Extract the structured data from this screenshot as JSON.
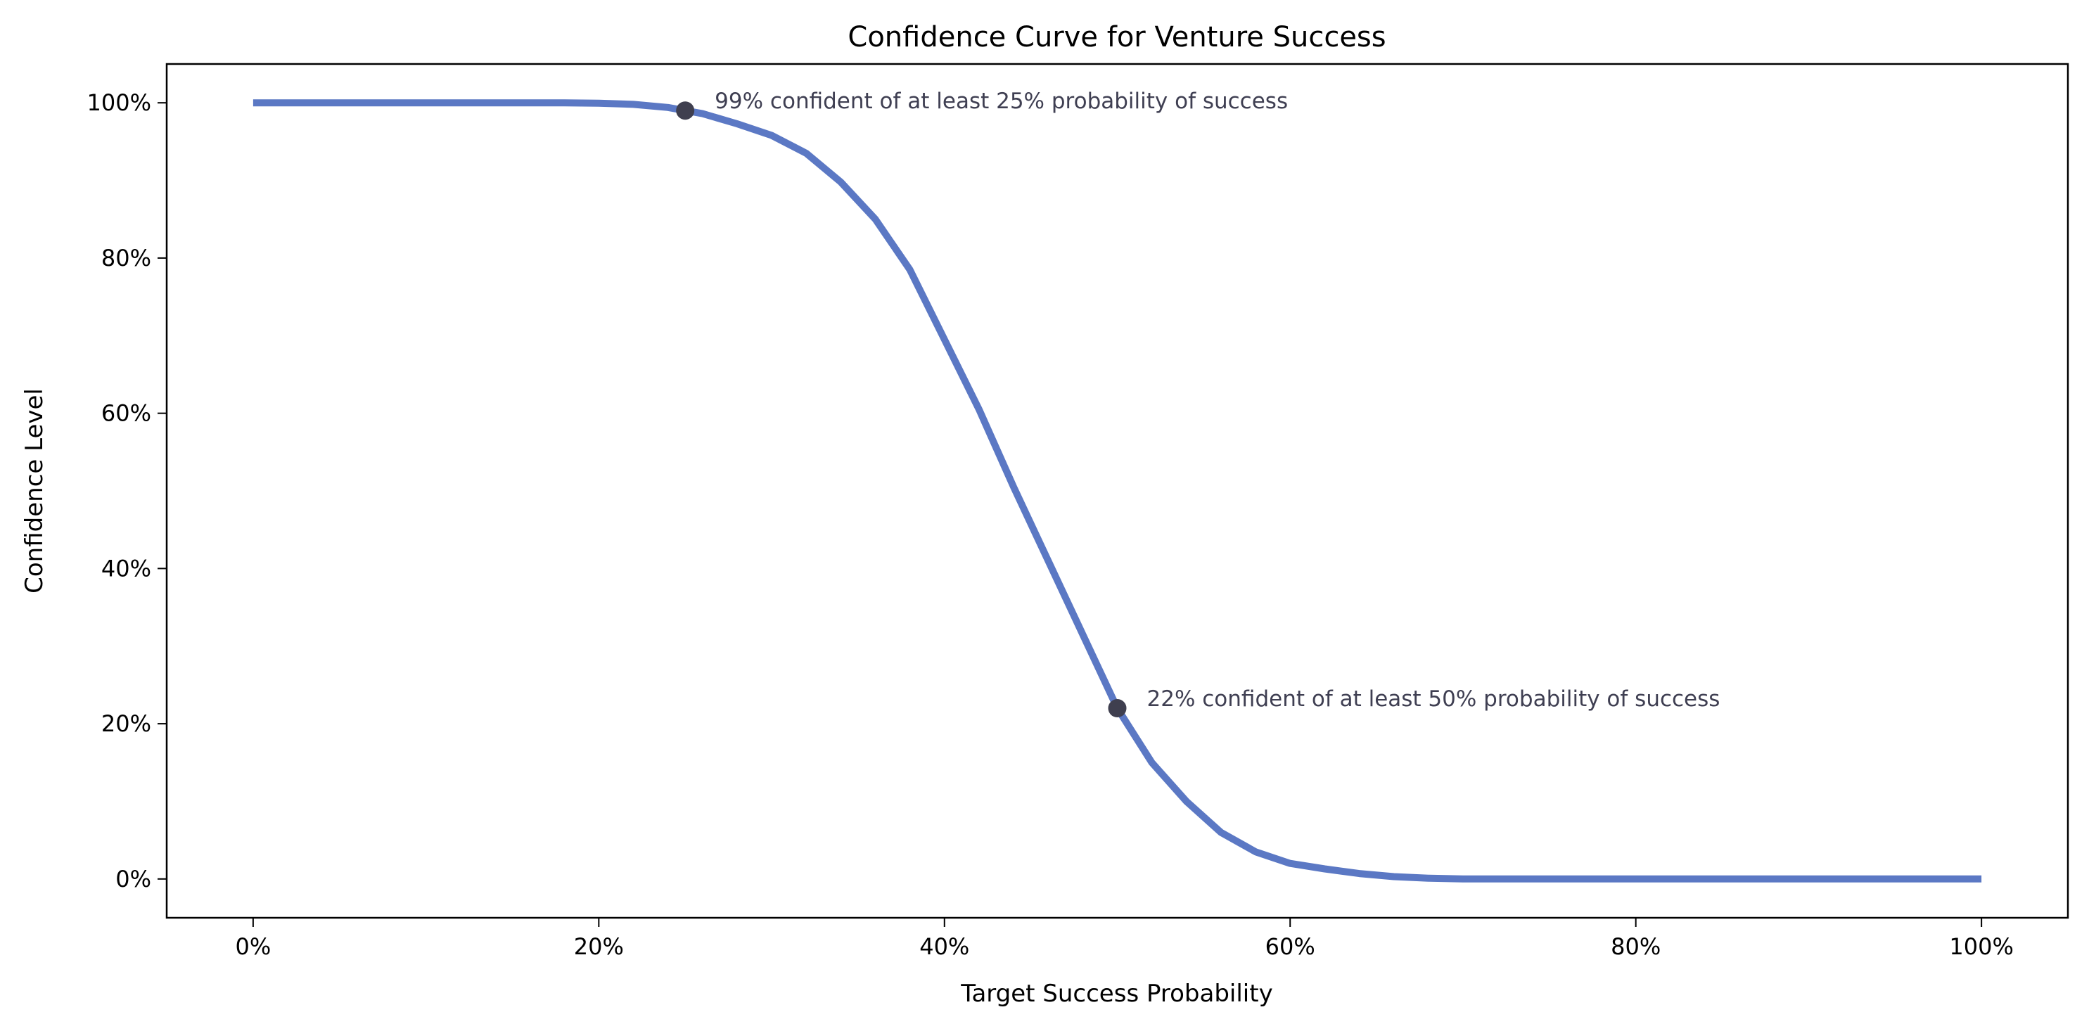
{
  "chart_data": {
    "type": "line",
    "title": "Confidence Curve for Venture Success",
    "xlabel": "Target Success Probability",
    "ylabel": "Confidence Level",
    "xlim": [
      -5,
      105
    ],
    "ylim": [
      -5,
      105
    ],
    "x_ticks": [
      0,
      20,
      40,
      60,
      80,
      100
    ],
    "x_tick_labels": [
      "0%",
      "20%",
      "40%",
      "60%",
      "80%",
      "100%"
    ],
    "y_ticks": [
      0,
      20,
      40,
      60,
      80,
      100
    ],
    "y_tick_labels": [
      "0%",
      "20%",
      "40%",
      "60%",
      "80%",
      "100%"
    ],
    "grid": false,
    "series": [
      {
        "color": "#5b78c4",
        "x": [
          0,
          10,
          18,
          20,
          22,
          24,
          25,
          26,
          28,
          30,
          32,
          34,
          36,
          38,
          40,
          42,
          44,
          46,
          48,
          50,
          52,
          54,
          56,
          58,
          60,
          62,
          64,
          66,
          68,
          70,
          80,
          90,
          100
        ],
        "y": [
          100,
          100,
          100,
          99.95,
          99.8,
          99.4,
          99,
          98.6,
          97.3,
          95.8,
          93.5,
          89.8,
          85,
          78.5,
          69.5,
          60.5,
          50.5,
          41,
          31.5,
          22,
          15,
          10,
          6,
          3.5,
          2,
          1.3,
          0.7,
          0.3,
          0.1,
          0,
          0,
          0,
          0
        ]
      }
    ],
    "annotations": [
      {
        "x": 25,
        "y": 99,
        "text": "99% confident of at least 25% probability of success",
        "marker_color": "#3f3f4f"
      },
      {
        "x": 50,
        "y": 22,
        "text": "22% confident of at least 50% probability of success",
        "marker_color": "#3f3f4f"
      }
    ]
  }
}
